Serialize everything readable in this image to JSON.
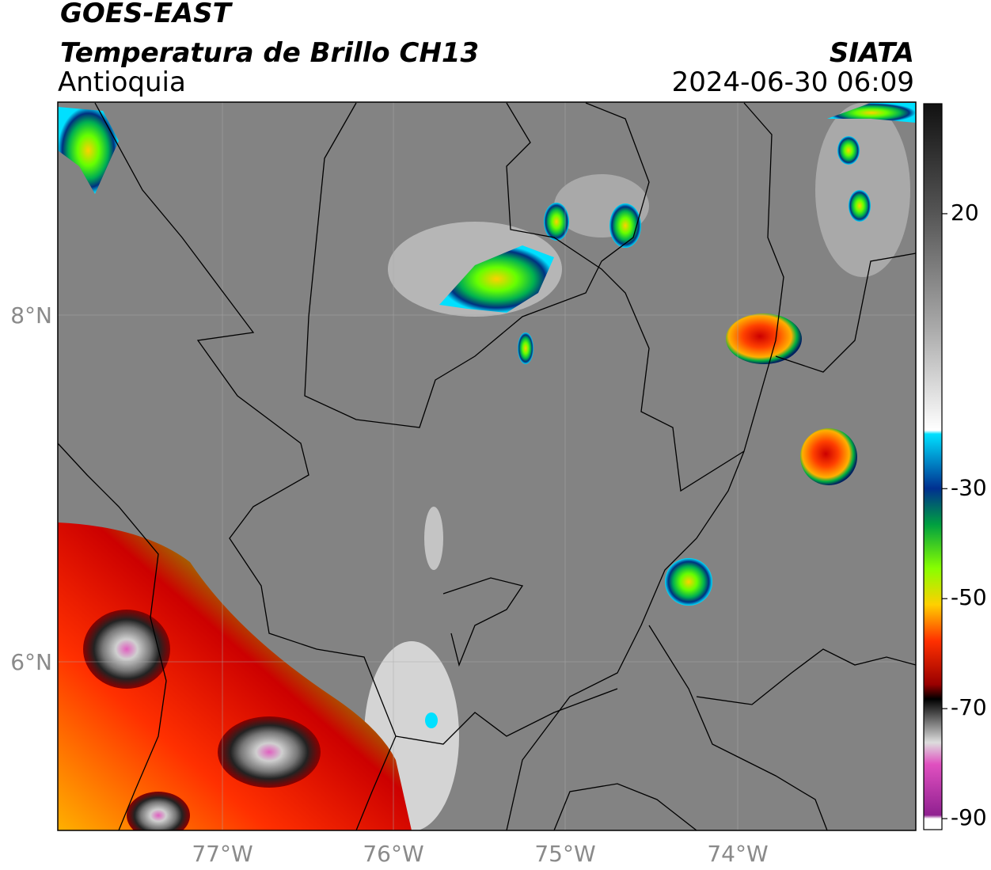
{
  "header": {
    "title": "GOES-EAST",
    "subtitle": "Temperatura de Brillo CH13",
    "region": "Antioquia",
    "source": "SIATA",
    "datetime": "2024-06-30 06:09"
  },
  "map": {
    "lat_labels": [
      "8°N",
      "6°N"
    ],
    "lon_labels": [
      "77°W",
      "76°W",
      "75°W",
      "74°W"
    ]
  },
  "colorbar": {
    "range": [
      -92,
      40
    ],
    "ticks": [
      20,
      -30,
      -50,
      -70,
      -90
    ]
  }
}
